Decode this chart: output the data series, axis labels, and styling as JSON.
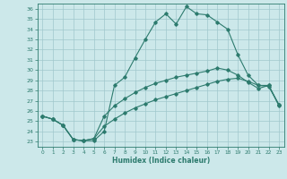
{
  "xlabel": "Humidex (Indice chaleur)",
  "background_color": "#cce8ea",
  "line_color": "#2d7b6e",
  "grid_color": "#a0c8cc",
  "xlim": [
    -0.5,
    23.5
  ],
  "ylim": [
    22.5,
    36.5
  ],
  "xticks": [
    0,
    1,
    2,
    3,
    4,
    5,
    6,
    7,
    8,
    9,
    10,
    11,
    12,
    13,
    14,
    15,
    16,
    17,
    18,
    19,
    20,
    21,
    22,
    23
  ],
  "yticks": [
    23,
    24,
    25,
    26,
    27,
    28,
    29,
    30,
    31,
    32,
    33,
    34,
    35,
    36
  ],
  "line1_x": [
    0,
    1,
    2,
    3,
    4,
    5,
    6,
    7,
    8,
    9,
    10,
    11,
    12,
    13,
    14,
    15,
    16,
    17,
    18,
    19,
    20,
    21,
    22,
    23
  ],
  "line1_y": [
    25.5,
    25.2,
    24.6,
    23.2,
    23.1,
    23.1,
    24.0,
    28.5,
    29.3,
    31.2,
    33.0,
    34.7,
    35.5,
    34.5,
    36.2,
    35.5,
    35.4,
    34.7,
    34.0,
    31.5,
    29.5,
    28.5,
    28.5,
    26.5
  ],
  "line2_x": [
    0,
    1,
    2,
    3,
    4,
    5,
    6,
    7,
    8,
    9,
    10,
    11,
    12,
    13,
    14,
    15,
    16,
    17,
    18,
    19,
    20,
    21,
    22,
    23
  ],
  "line2_y": [
    25.5,
    25.2,
    24.6,
    23.2,
    23.1,
    23.3,
    25.5,
    26.5,
    27.2,
    27.8,
    28.3,
    28.7,
    29.0,
    29.3,
    29.5,
    29.7,
    29.9,
    30.2,
    30.0,
    29.5,
    28.8,
    28.2,
    28.5,
    26.6
  ],
  "line3_x": [
    0,
    1,
    2,
    3,
    4,
    5,
    6,
    7,
    8,
    9,
    10,
    11,
    12,
    13,
    14,
    15,
    16,
    17,
    18,
    19,
    20,
    21,
    22,
    23
  ],
  "line3_y": [
    25.5,
    25.2,
    24.6,
    23.2,
    23.1,
    23.3,
    24.5,
    25.2,
    25.8,
    26.3,
    26.7,
    27.1,
    27.4,
    27.7,
    28.0,
    28.3,
    28.6,
    28.9,
    29.1,
    29.2,
    28.9,
    28.5,
    28.4,
    26.6
  ]
}
